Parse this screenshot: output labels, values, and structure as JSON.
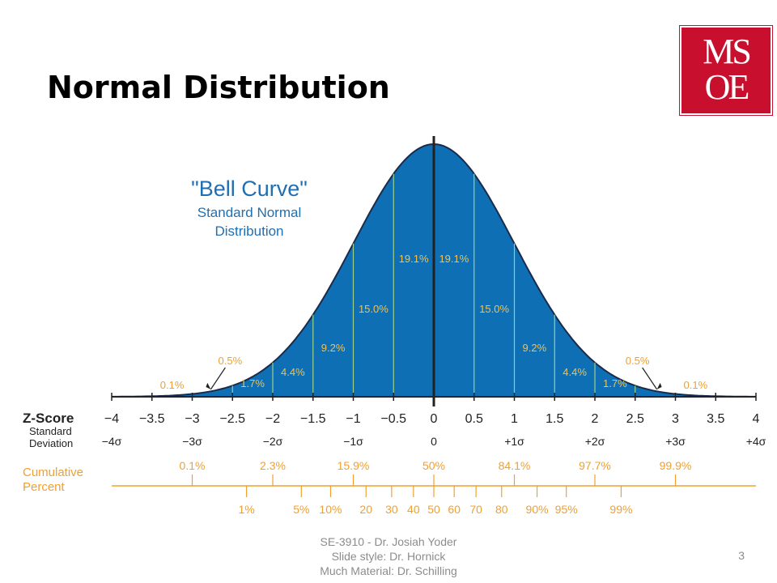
{
  "slide": {
    "title": "Normal Distribution",
    "logo_row1": "MS",
    "logo_row2": "OE",
    "footer_lines": [
      "SE-3910  - Dr. Josiah Yoder",
      "Slide style: Dr. Hornick",
      "Much Material: Dr. Schilling"
    ],
    "page_number": "3"
  },
  "colors": {
    "curve_fill": "#0e6fb5",
    "curve_outline": "#1a2b4a",
    "band_line": "#9bd08a",
    "band_text": "#f5c04a",
    "heading_blue": "#1f6fb2",
    "orange": "#f0a030",
    "axis": "#222222"
  },
  "chart_data": {
    "type": "area",
    "title": "\"Bell Curve\"",
    "subtitle_lines": [
      "Standard Normal",
      "Distribution"
    ],
    "xlim": [
      -4,
      4
    ],
    "z_ticks": [
      -4,
      -3.5,
      -3,
      -2.5,
      -2,
      -1.5,
      -1,
      -0.5,
      0,
      0.5,
      1,
      1.5,
      2,
      2.5,
      3,
      3.5,
      4
    ],
    "z_tick_labels": [
      "−4",
      "−3.5",
      "−3",
      "−2.5",
      "−2",
      "−1.5",
      "−1",
      "−0.5",
      "0",
      "0.5",
      "1",
      "1.5",
      "2",
      "2.5",
      "3",
      "3.5",
      "4"
    ],
    "z_label": "Z-Score",
    "sd_label_lines": [
      "Standard",
      "Deviation"
    ],
    "sigma_ticks": [
      -4,
      -3,
      -2,
      -1,
      0,
      1,
      2,
      3,
      4
    ],
    "sigma_labels": [
      "−4σ",
      "−3σ",
      "−2σ",
      "−1σ",
      "0",
      "+1σ",
      "+2σ",
      "+3σ",
      "+4σ"
    ],
    "band_percents": [
      {
        "z": -3.25,
        "label": "0.1%"
      },
      {
        "z": -2.75,
        "label": "0.5%"
      },
      {
        "z": -2.25,
        "label": "1.7%"
      },
      {
        "z": -1.75,
        "label": "4.4%"
      },
      {
        "z": -1.25,
        "label": "9.2%"
      },
      {
        "z": -0.75,
        "label": "15.0%"
      },
      {
        "z": -0.25,
        "label": "19.1%"
      },
      {
        "z": 0.25,
        "label": "19.1%"
      },
      {
        "z": 0.75,
        "label": "15.0%"
      },
      {
        "z": 1.25,
        "label": "9.2%"
      },
      {
        "z": 1.75,
        "label": "4.4%"
      },
      {
        "z": 2.25,
        "label": "1.7%"
      },
      {
        "z": 2.75,
        "label": "0.5%"
      },
      {
        "z": 3.25,
        "label": "0.1%"
      }
    ],
    "cumulative_label_lines": [
      "Cumulative",
      "Percent"
    ],
    "cumulative_upper": [
      {
        "z": -3,
        "label": "0.1%"
      },
      {
        "z": -2,
        "label": "2.3%"
      },
      {
        "z": -1,
        "label": "15.9%"
      },
      {
        "z": 0,
        "label": "50%"
      },
      {
        "z": 1,
        "label": "84.1%"
      },
      {
        "z": 2,
        "label": "97.7%"
      },
      {
        "z": 3,
        "label": "99.9%"
      }
    ],
    "cumulative_lower": [
      {
        "z": -2.326,
        "label": "1%"
      },
      {
        "z": -1.645,
        "label": "5%"
      },
      {
        "z": -1.282,
        "label": "10%"
      },
      {
        "z": -0.842,
        "label": "20"
      },
      {
        "z": -0.524,
        "label": "30"
      },
      {
        "z": -0.253,
        "label": "40"
      },
      {
        "z": 0,
        "label": "50"
      },
      {
        "z": 0.253,
        "label": "60"
      },
      {
        "z": 0.524,
        "label": "70"
      },
      {
        "z": 0.842,
        "label": "80"
      },
      {
        "z": 1.282,
        "label": "90%"
      },
      {
        "z": 1.645,
        "label": "95%"
      },
      {
        "z": 2.326,
        "label": "99%"
      }
    ]
  }
}
